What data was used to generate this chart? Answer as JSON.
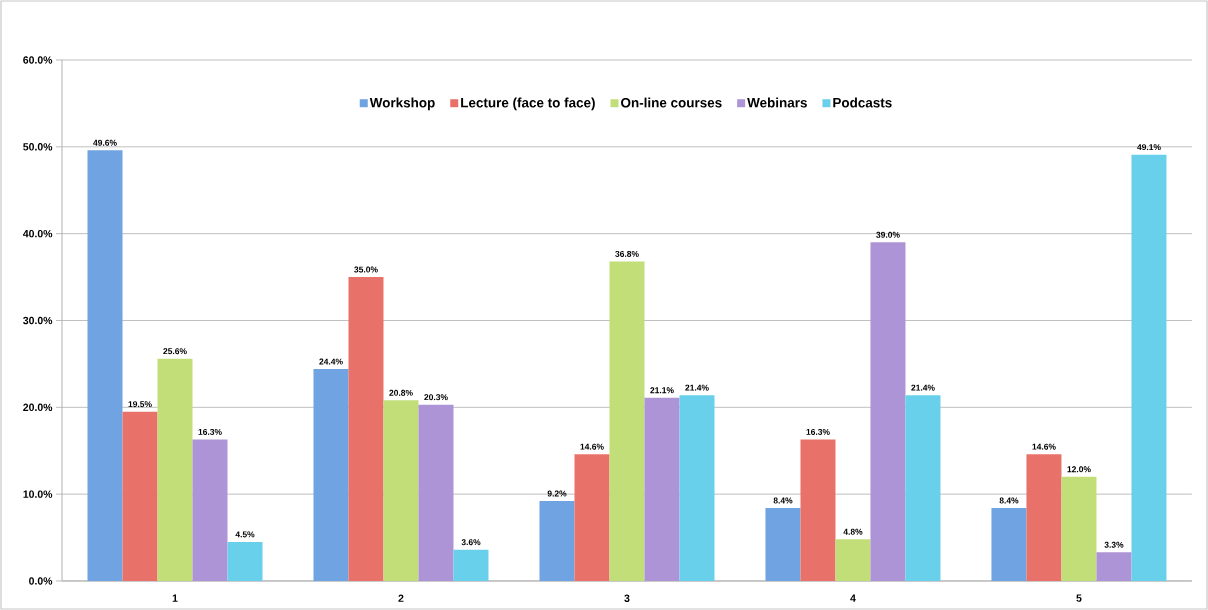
{
  "chart_data": {
    "type": "bar",
    "categories": [
      "1",
      "2",
      "3",
      "4",
      "5"
    ],
    "series": [
      {
        "name": "Workshop",
        "color": "#6fa3e2",
        "values": [
          49.6,
          24.4,
          9.2,
          8.4,
          8.4
        ],
        "value_labels": [
          "49.6%",
          "24.4%",
          "9.2%",
          "8.4%",
          "8.4%"
        ]
      },
      {
        "name": "Lecture (face to face)",
        "color": "#e8726a",
        "values": [
          19.5,
          35.0,
          14.6,
          16.3,
          14.6
        ],
        "value_labels": [
          "19.5%",
          "35.0%",
          "14.6%",
          "16.3%",
          "14.6%"
        ]
      },
      {
        "name": "On-line courses",
        "color": "#c2de78",
        "values": [
          25.6,
          20.8,
          36.8,
          4.8,
          12.0
        ],
        "value_labels": [
          "25.6%",
          "20.8%",
          "36.8%",
          "4.8%",
          "12.0%"
        ]
      },
      {
        "name": "Webinars",
        "color": "#ac94d6",
        "values": [
          16.3,
          20.3,
          21.1,
          39.0,
          3.3
        ],
        "value_labels": [
          "16.3%",
          "20.3%",
          "21.1%",
          "39.0%",
          "3.3%"
        ]
      },
      {
        "name": "Podcasts",
        "color": "#68d0ea",
        "values": [
          4.5,
          3.6,
          21.4,
          21.4,
          49.1
        ],
        "value_labels": [
          "4.5%",
          "3.6%",
          "21.4%",
          "21.4%",
          "49.1%"
        ]
      }
    ],
    "ylim": [
      0,
      60
    ],
    "yticks": [
      {
        "value": 0,
        "label": "0.0%"
      },
      {
        "value": 10,
        "label": "10.0%"
      },
      {
        "value": 20,
        "label": "20.0%"
      },
      {
        "value": 30,
        "label": "30.0%"
      },
      {
        "value": 40,
        "label": "40.0%"
      },
      {
        "value": 50,
        "label": "50.0%"
      },
      {
        "value": 60,
        "label": "60.0%"
      }
    ],
    "grid": "y",
    "legend": "top"
  }
}
